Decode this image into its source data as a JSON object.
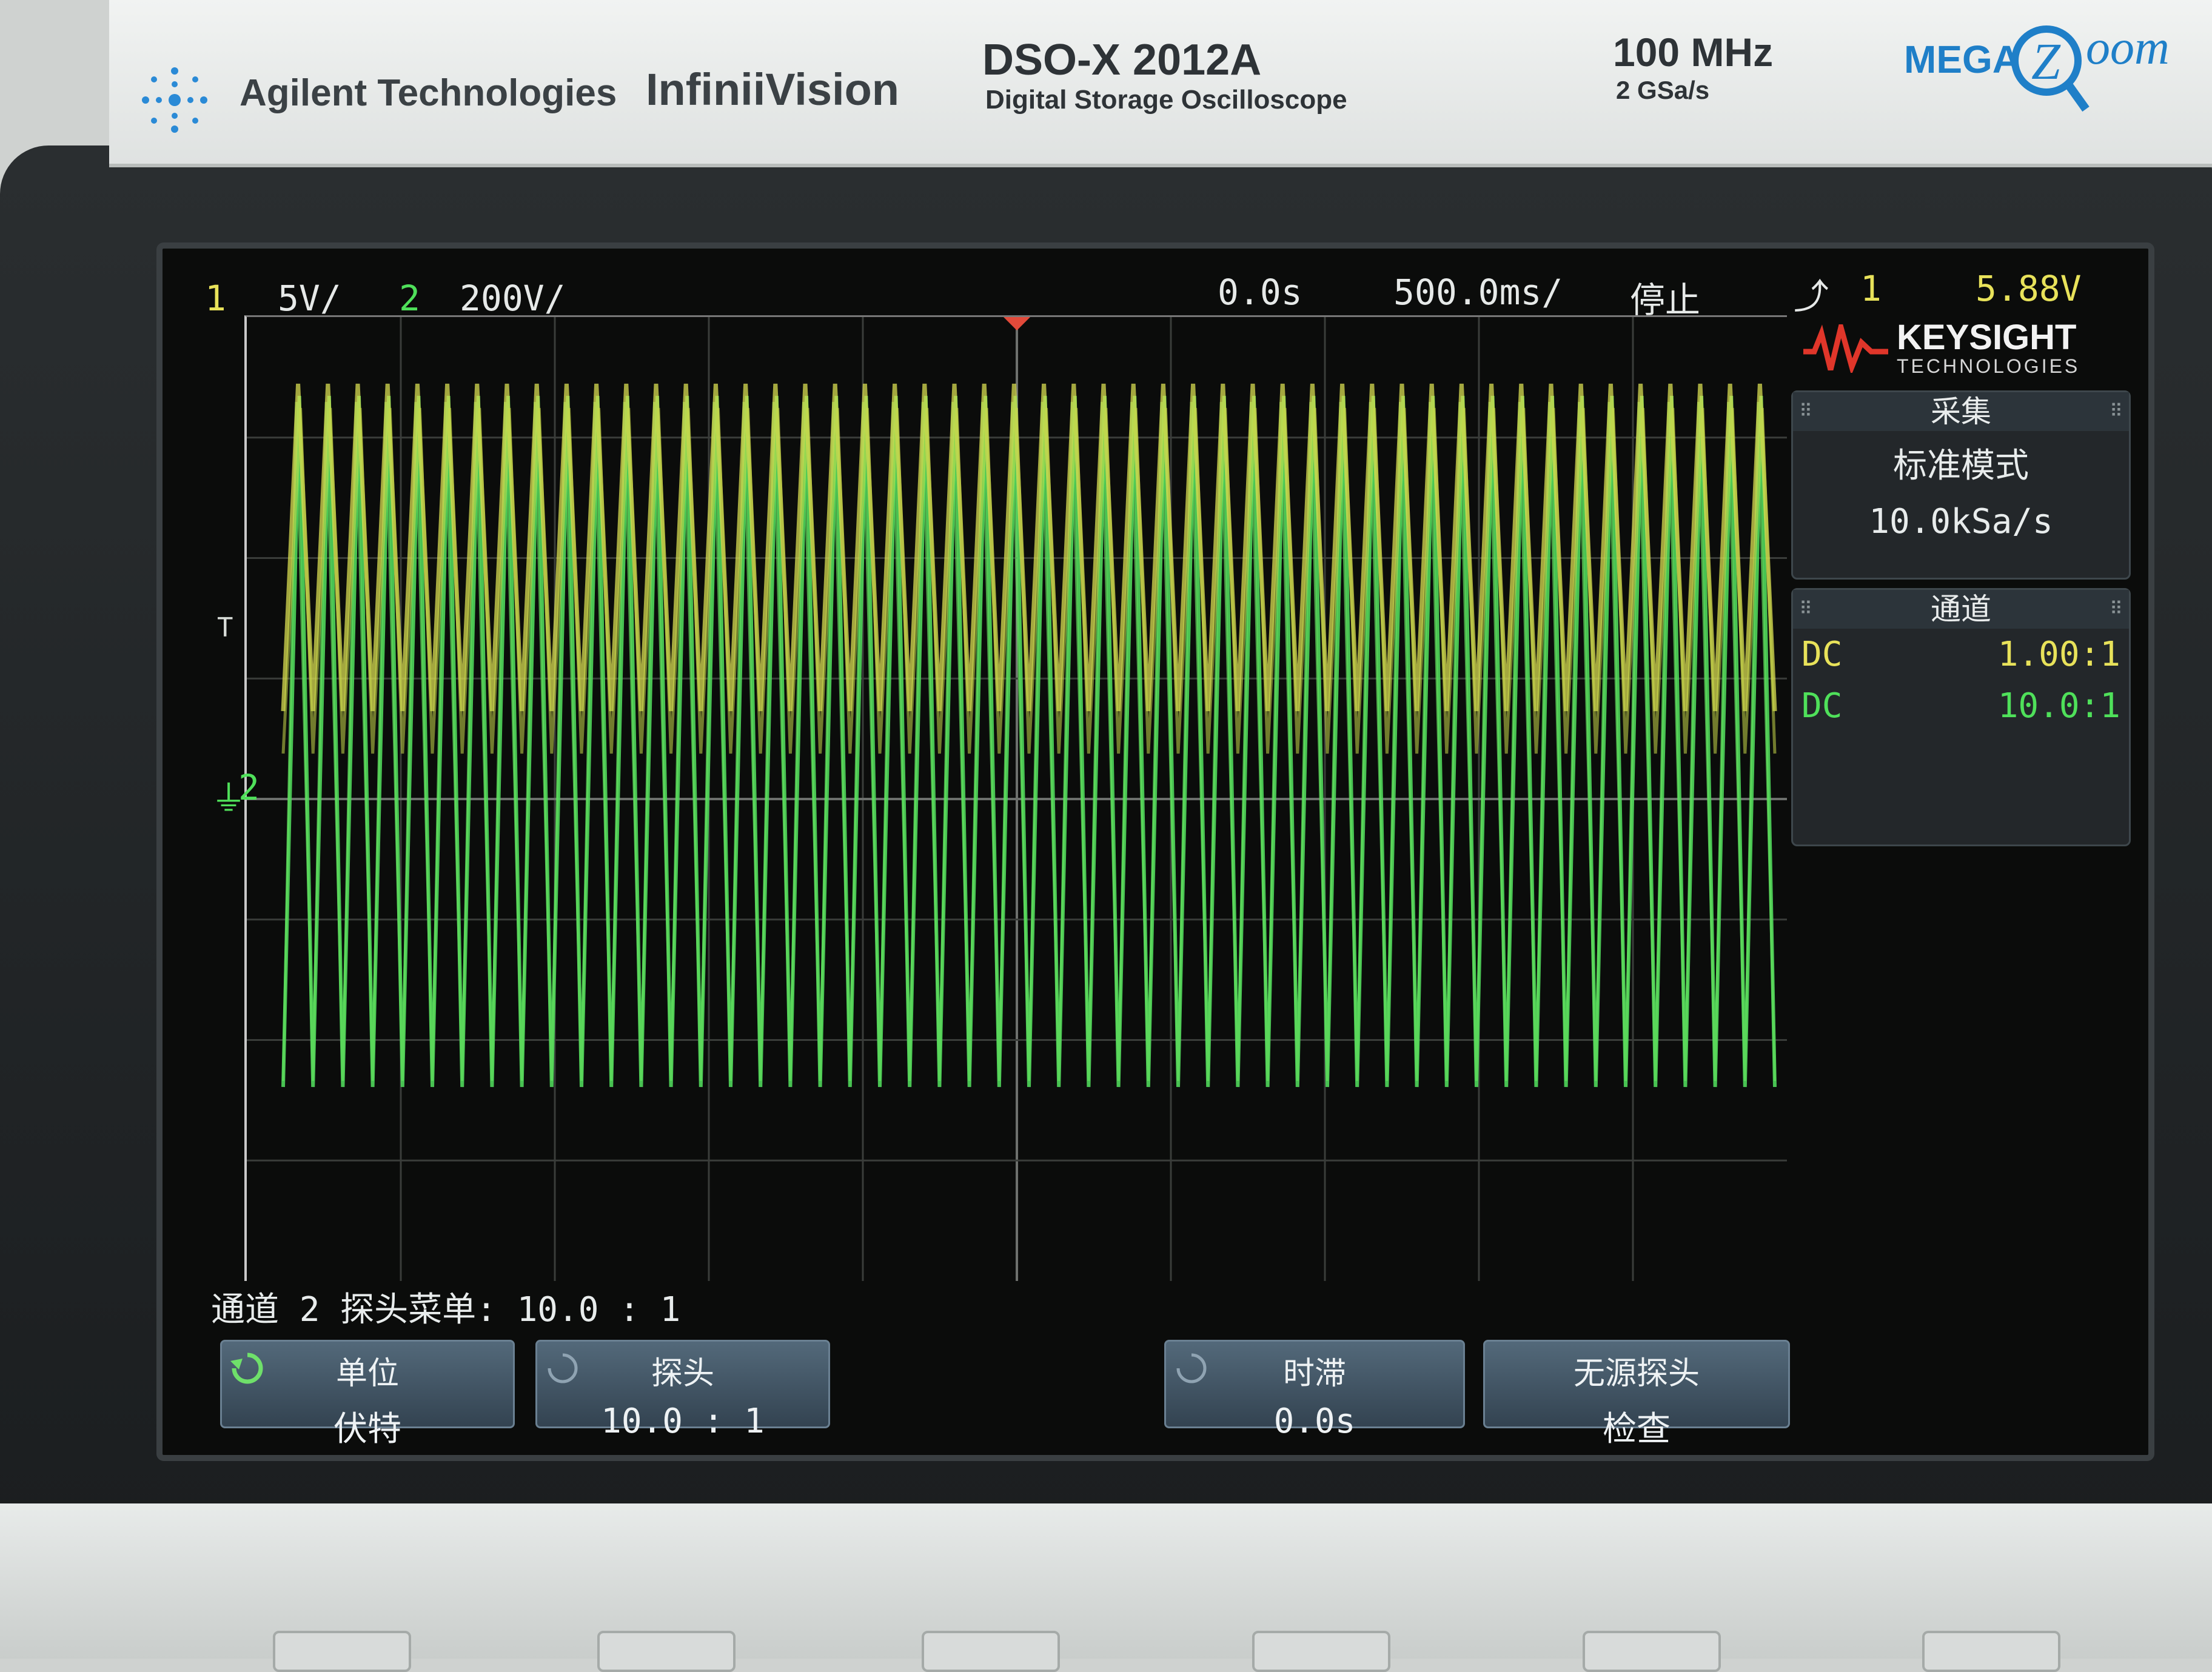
{
  "header": {
    "brand": "Agilent Technologies",
    "series": "InfiniiVision",
    "model": "DSO-X 2012A",
    "model_desc": "Digital Storage Oscilloscope",
    "bandwidth": "100 MHz",
    "sample_rate": "2 GSa/s",
    "megazoom_logo_text": "MEGA Zoom"
  },
  "status_bar": {
    "ch1_num": "1",
    "ch1_scale": "5V/",
    "ch2_num": "2",
    "ch2_scale": "200V/",
    "time_delay": "0.0s",
    "time_scale": "500.0ms/",
    "run_state": "停止",
    "trigger_source": "1",
    "trigger_level": "5.88V"
  },
  "side_panel": {
    "brand": "KEYSIGHT",
    "brand_sub": "TECHNOLOGIES",
    "acq_header": "采集",
    "acq_mode": "标准模式",
    "acq_rate": "10.0kSa/s",
    "chan_header": "通道",
    "chan_rows": [
      {
        "coupling": "DC",
        "probe": "1.00:1"
      },
      {
        "coupling": "DC",
        "probe": "10.0:1"
      }
    ]
  },
  "markers": {
    "trigger_level_marker": "T",
    "ch2_ground_marker": "2"
  },
  "menu": {
    "title": "通道 2 探头菜单: 10.0 : 1",
    "softkeys": [
      {
        "line1": "单位",
        "line2": "伏特"
      },
      {
        "line1": "探头",
        "line2": "10.0 : 1"
      },
      {
        "line1": "时滞",
        "line2": "0.0s"
      },
      {
        "line1": "无源探头",
        "line2": "检查"
      }
    ]
  },
  "colors": {
    "ch1": "#e8e25a",
    "ch2": "#4fe05a",
    "accent_logo": "#1f7fc8"
  }
}
